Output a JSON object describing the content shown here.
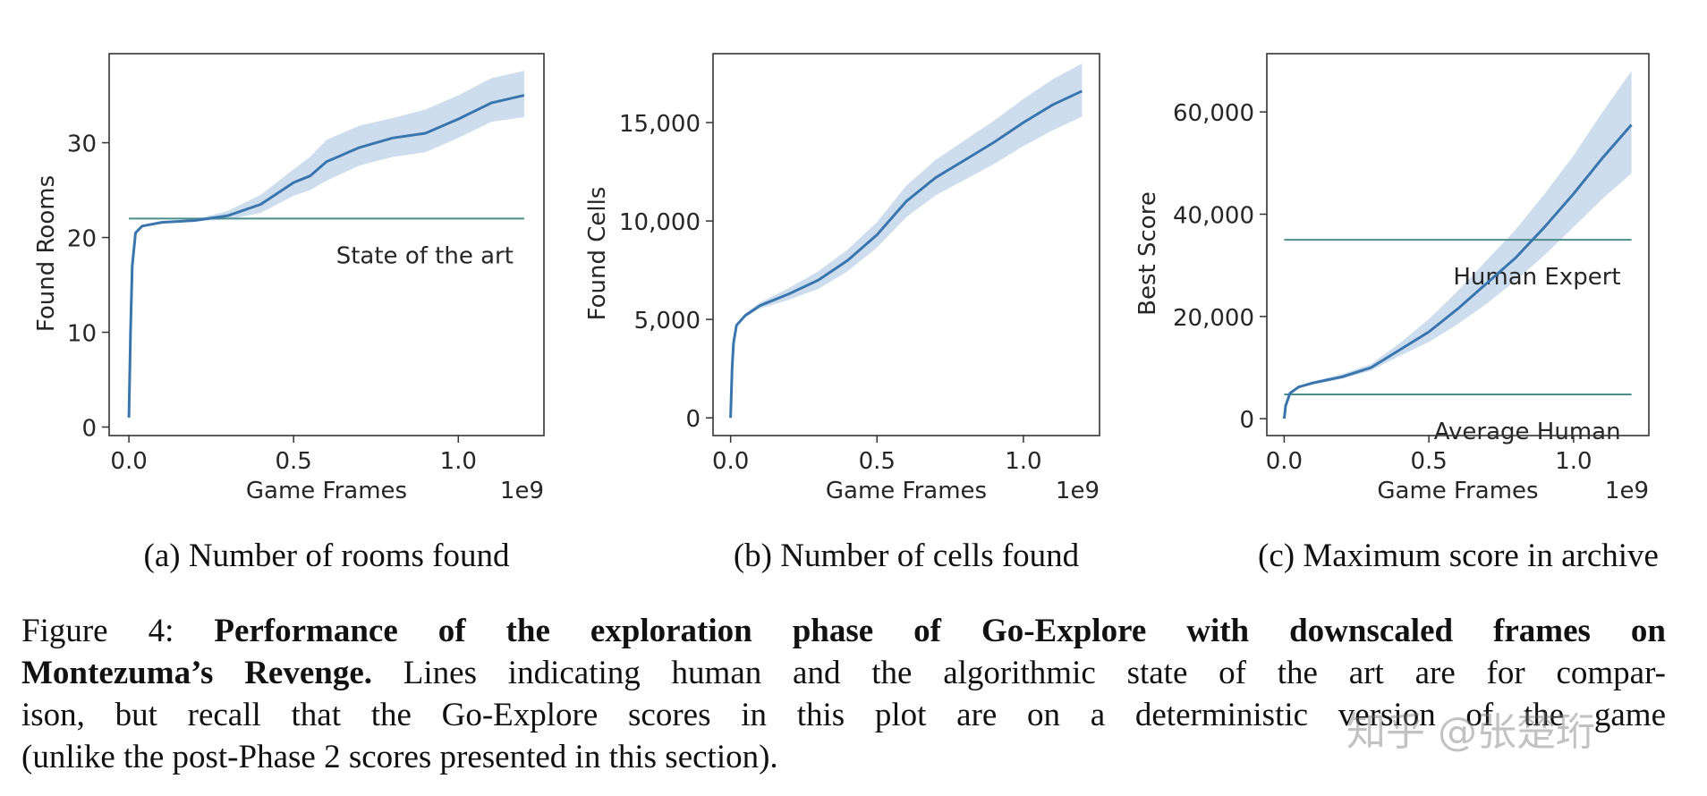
{
  "colors": {
    "line": "#3a76ad",
    "band": "#c6d7ea",
    "reference": "#4a8f8c",
    "axis": "#333333",
    "text": "#262626"
  },
  "chart_data": [
    {
      "type": "line",
      "subcaption": "(a) Number of rooms found",
      "xlabel": "Game Frames",
      "x_offset_label": "1e9",
      "ylabel": "Found Rooms",
      "xlim": [
        -0.06,
        1.26
      ],
      "ylim": [
        -0.9,
        39.4
      ],
      "xticks": [
        0.0,
        0.5,
        1.0
      ],
      "xtick_labels": [
        "0.0",
        "0.5",
        "1.0"
      ],
      "yticks": [
        0,
        10,
        20,
        30
      ],
      "ytick_labels": [
        "0",
        "10",
        "20",
        "30"
      ],
      "grid": false,
      "x": [
        0,
        0.005,
        0.01,
        0.02,
        0.04,
        0.1,
        0.2,
        0.3,
        0.4,
        0.5,
        0.55,
        0.6,
        0.7,
        0.8,
        0.9,
        1.0,
        1.1,
        1.2
      ],
      "mean": [
        1,
        10,
        17,
        20.5,
        21.2,
        21.6,
        21.8,
        22.3,
        23.5,
        25.8,
        26.5,
        28,
        29.5,
        30.5,
        31,
        32.5,
        34.2,
        35
      ],
      "upper": [
        1,
        10,
        17,
        20.5,
        21.2,
        21.6,
        21.9,
        22.8,
        24.5,
        27.2,
        28.5,
        30.3,
        31.8,
        32.6,
        33.5,
        35,
        36.8,
        37.6
      ],
      "lower": [
        1,
        10,
        17,
        20.5,
        21.2,
        21.6,
        21.7,
        21.9,
        22.6,
        24.4,
        25,
        26,
        27.6,
        28.5,
        29,
        30.5,
        32.2,
        32.7
      ],
      "reference_lines": [
        {
          "y": 22,
          "label": "State of the art"
        }
      ]
    },
    {
      "type": "line",
      "subcaption": "(b) Number of cells found",
      "xlabel": "Game Frames",
      "x_offset_label": "1e9",
      "ylabel": "Found Cells",
      "xlim": [
        -0.06,
        1.26
      ],
      "ylim": [
        -900,
        18500
      ],
      "xticks": [
        0.0,
        0.5,
        1.0
      ],
      "xtick_labels": [
        "0.0",
        "0.5",
        "1.0"
      ],
      "yticks": [
        0,
        5000,
        10000,
        15000
      ],
      "ytick_labels": [
        "0",
        "5,000",
        "10,000",
        "15,000"
      ],
      "grid": false,
      "x": [
        0,
        0.005,
        0.01,
        0.02,
        0.05,
        0.1,
        0.2,
        0.3,
        0.4,
        0.5,
        0.6,
        0.7,
        0.8,
        0.9,
        1.0,
        1.1,
        1.2
      ],
      "mean": [
        0,
        2500,
        3800,
        4700,
        5200,
        5700,
        6300,
        7000,
        8000,
        9300,
        11000,
        12200,
        13100,
        14000,
        15000,
        15900,
        16600
      ],
      "upper": [
        0,
        2500,
        3800,
        4750,
        5300,
        5850,
        6600,
        7450,
        8550,
        9950,
        11800,
        13100,
        14100,
        15100,
        16200,
        17200,
        18000
      ],
      "lower": [
        0,
        2500,
        3800,
        4650,
        5100,
        5550,
        6000,
        6550,
        7450,
        8650,
        10200,
        11300,
        12100,
        12900,
        13800,
        14600,
        15300
      ],
      "reference_lines": []
    },
    {
      "type": "line",
      "subcaption": "(c) Maximum score in archive",
      "xlabel": "Game Frames",
      "x_offset_label": "1e9",
      "ylabel": "Best Score",
      "xlim": [
        -0.06,
        1.26
      ],
      "ylim": [
        -3300,
        71400
      ],
      "xticks": [
        0.0,
        0.5,
        1.0
      ],
      "xtick_labels": [
        "0.0",
        "0.5",
        "1.0"
      ],
      "yticks": [
        0,
        20000,
        40000,
        60000
      ],
      "ytick_labels": [
        "0",
        "20,000",
        "40,000",
        "60,000"
      ],
      "grid": false,
      "x": [
        0,
        0.005,
        0.02,
        0.05,
        0.1,
        0.2,
        0.3,
        0.4,
        0.5,
        0.6,
        0.7,
        0.8,
        0.9,
        1.0,
        1.1,
        1.2
      ],
      "mean": [
        0,
        2500,
        5000,
        6200,
        7000,
        8200,
        10000,
        13500,
        17000,
        21500,
        26500,
        31500,
        37500,
        44000,
        51000,
        57500
      ],
      "upper": [
        0,
        2500,
        5100,
        6400,
        7300,
        8700,
        10700,
        14800,
        19500,
        25000,
        31000,
        37000,
        44000,
        51500,
        60000,
        68000
      ],
      "lower": [
        0,
        2500,
        4900,
        6000,
        6700,
        7800,
        9400,
        12300,
        15000,
        18500,
        22500,
        27000,
        32000,
        37500,
        43000,
        48000
      ],
      "reference_lines": [
        {
          "y": 35000,
          "label": "Human Expert"
        },
        {
          "y": 4750,
          "label": "Average Human"
        }
      ]
    }
  ],
  "caption": {
    "lines": [
      [
        {
          "bold": false,
          "text": "Figure 4:  "
        },
        {
          "bold": true,
          "text": "Performance of the exploration phase of Go-Explore with downscaled frames on"
        }
      ],
      [
        {
          "bold": true,
          "text": "Montezuma’s Revenge."
        },
        {
          "bold": false,
          "text": " Lines indicating human and the algorithmic state of the art are for compar-"
        }
      ],
      [
        {
          "bold": false,
          "text": "ison, but recall that the Go-Explore scores in this plot are on a deterministic version of the game"
        }
      ],
      [
        {
          "bold": false,
          "text": "(unlike the post-Phase 2 scores presented in this section)."
        }
      ]
    ]
  },
  "watermark": "知乎 @张楚珩"
}
